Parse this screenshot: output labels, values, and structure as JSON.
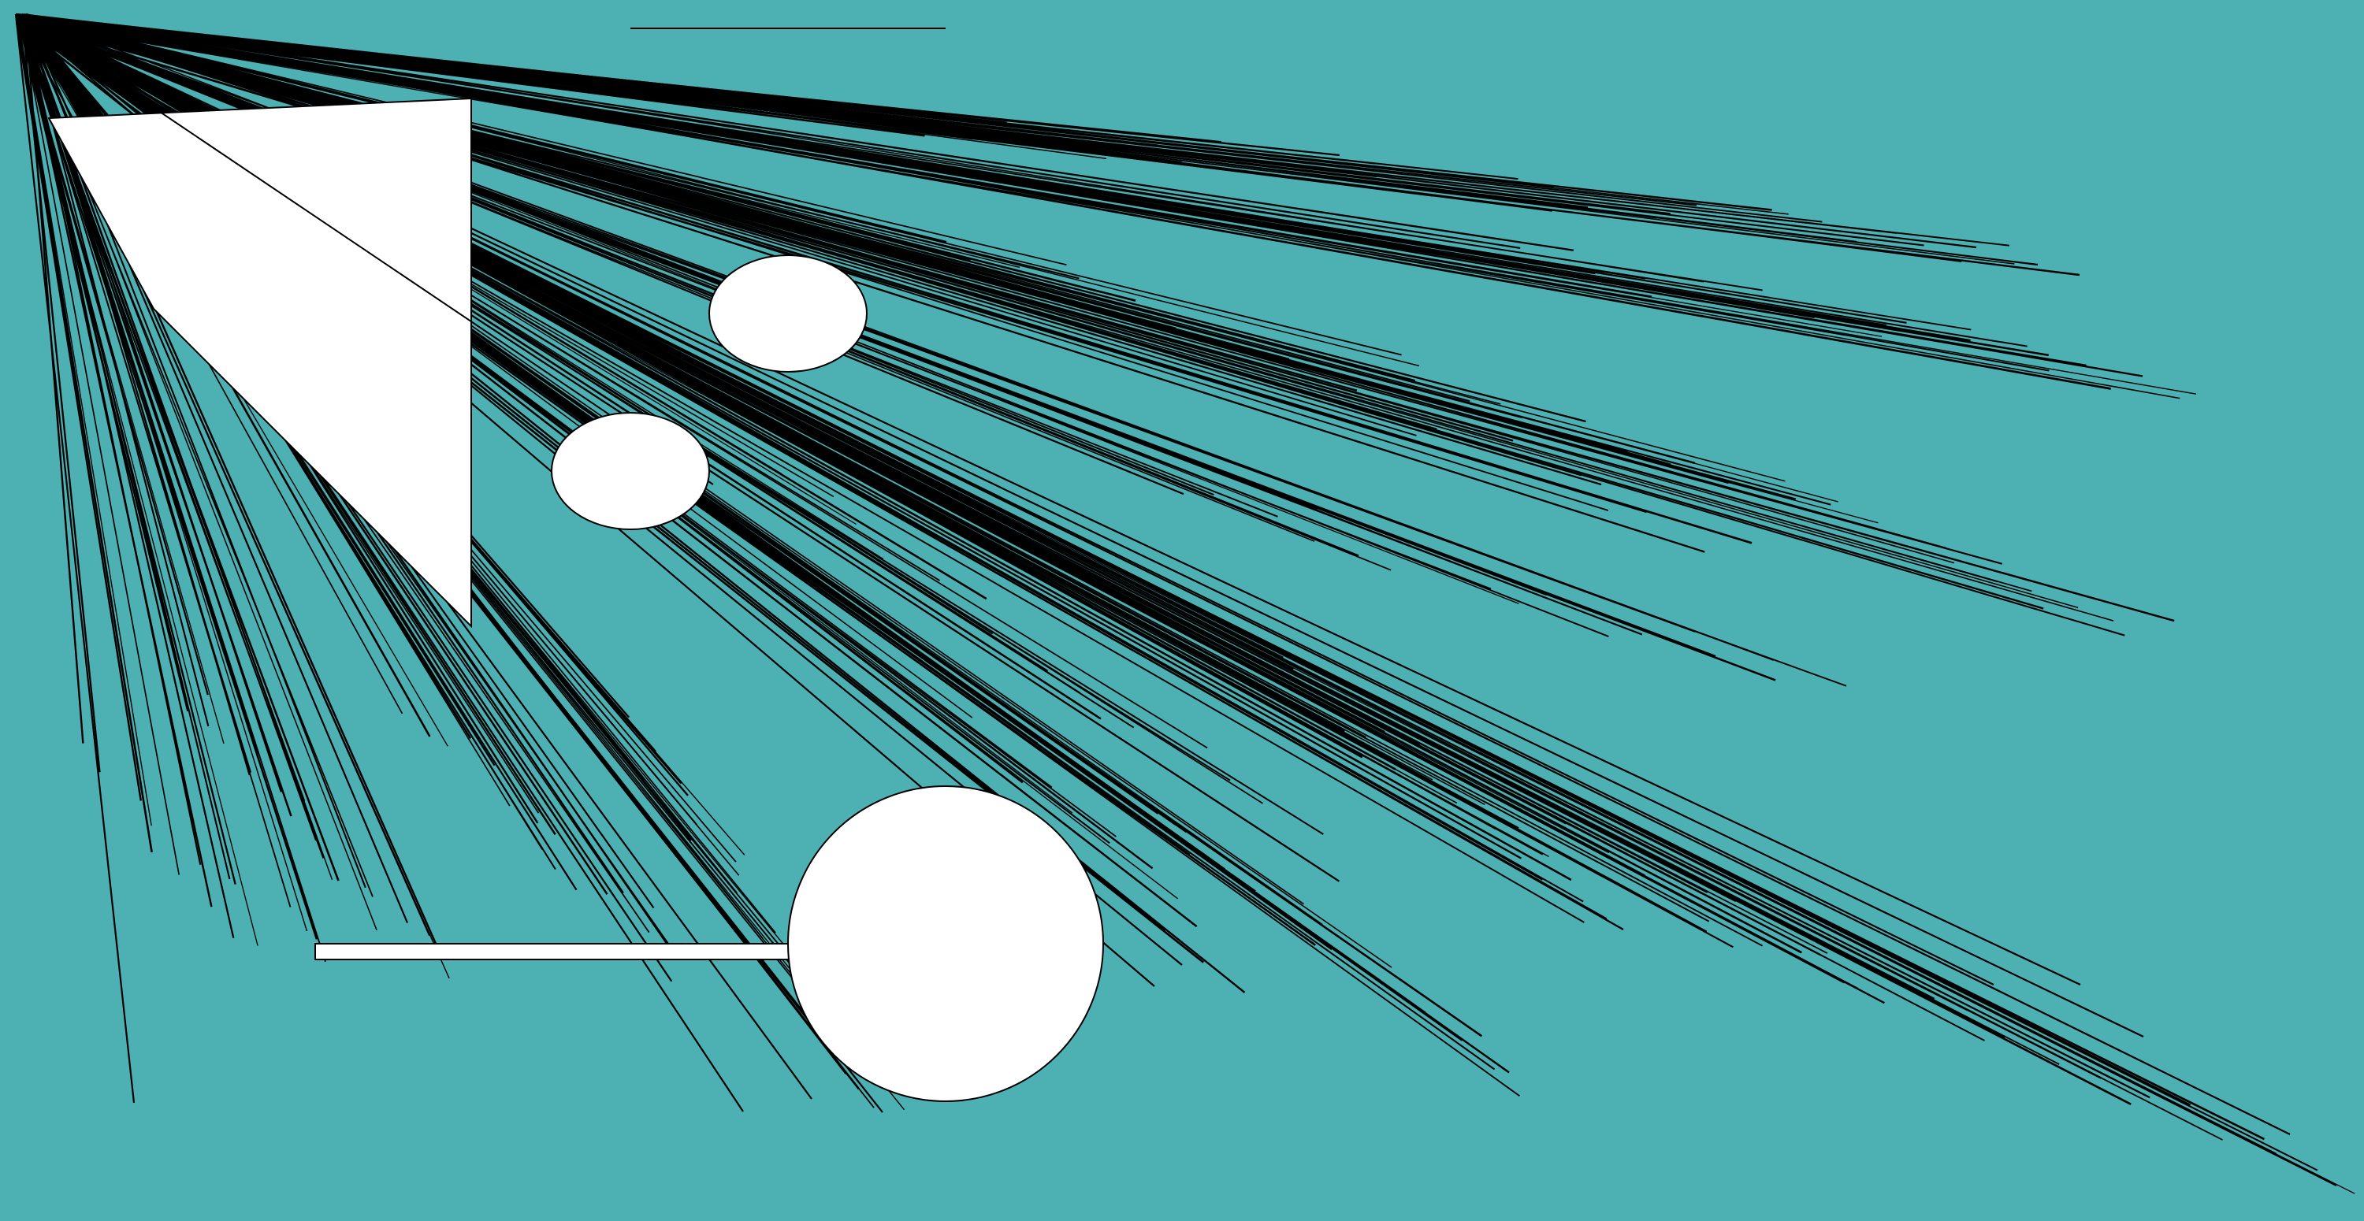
{
  "scene": {
    "colors": {
      "background": "#4db0b2",
      "stroke": "#000000",
      "fill": "#ffffff"
    }
  }
}
